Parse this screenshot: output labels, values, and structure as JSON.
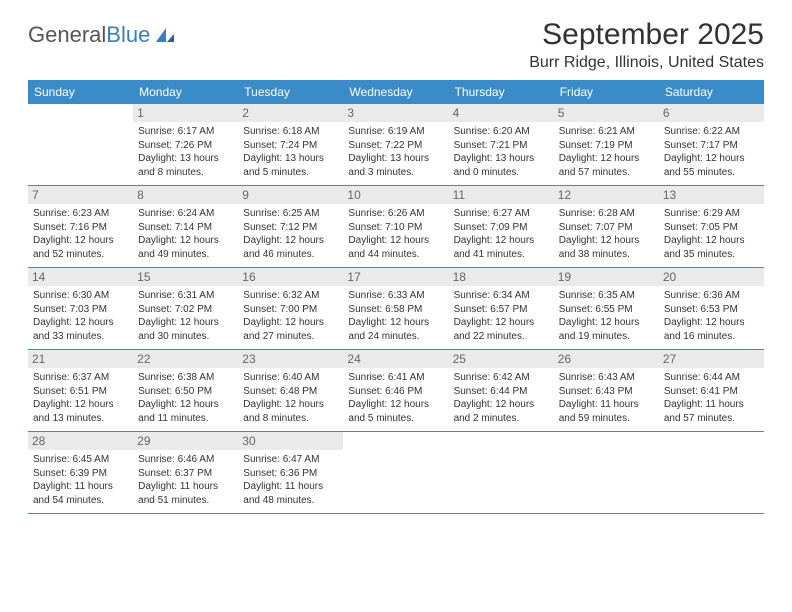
{
  "logo": {
    "text1": "General",
    "text2": "Blue"
  },
  "title": "September 2025",
  "location": "Burr Ridge, Illinois, United States",
  "weekdays": [
    "Sunday",
    "Monday",
    "Tuesday",
    "Wednesday",
    "Thursday",
    "Friday",
    "Saturday"
  ],
  "colors": {
    "header_bg": "#3a8cc9",
    "header_text": "#ffffff",
    "accent": "#3a7ebf",
    "daynum_bg": "#eaeaea",
    "border": "#3a8cc9"
  },
  "weeks": [
    [
      {
        "n": "",
        "sr": "",
        "ss": "",
        "dl": ""
      },
      {
        "n": "1",
        "sr": "Sunrise: 6:17 AM",
        "ss": "Sunset: 7:26 PM",
        "dl": "Daylight: 13 hours and 8 minutes."
      },
      {
        "n": "2",
        "sr": "Sunrise: 6:18 AM",
        "ss": "Sunset: 7:24 PM",
        "dl": "Daylight: 13 hours and 5 minutes."
      },
      {
        "n": "3",
        "sr": "Sunrise: 6:19 AM",
        "ss": "Sunset: 7:22 PM",
        "dl": "Daylight: 13 hours and 3 minutes."
      },
      {
        "n": "4",
        "sr": "Sunrise: 6:20 AM",
        "ss": "Sunset: 7:21 PM",
        "dl": "Daylight: 13 hours and 0 minutes."
      },
      {
        "n": "5",
        "sr": "Sunrise: 6:21 AM",
        "ss": "Sunset: 7:19 PM",
        "dl": "Daylight: 12 hours and 57 minutes."
      },
      {
        "n": "6",
        "sr": "Sunrise: 6:22 AM",
        "ss": "Sunset: 7:17 PM",
        "dl": "Daylight: 12 hours and 55 minutes."
      }
    ],
    [
      {
        "n": "7",
        "sr": "Sunrise: 6:23 AM",
        "ss": "Sunset: 7:16 PM",
        "dl": "Daylight: 12 hours and 52 minutes."
      },
      {
        "n": "8",
        "sr": "Sunrise: 6:24 AM",
        "ss": "Sunset: 7:14 PM",
        "dl": "Daylight: 12 hours and 49 minutes."
      },
      {
        "n": "9",
        "sr": "Sunrise: 6:25 AM",
        "ss": "Sunset: 7:12 PM",
        "dl": "Daylight: 12 hours and 46 minutes."
      },
      {
        "n": "10",
        "sr": "Sunrise: 6:26 AM",
        "ss": "Sunset: 7:10 PM",
        "dl": "Daylight: 12 hours and 44 minutes."
      },
      {
        "n": "11",
        "sr": "Sunrise: 6:27 AM",
        "ss": "Sunset: 7:09 PM",
        "dl": "Daylight: 12 hours and 41 minutes."
      },
      {
        "n": "12",
        "sr": "Sunrise: 6:28 AM",
        "ss": "Sunset: 7:07 PM",
        "dl": "Daylight: 12 hours and 38 minutes."
      },
      {
        "n": "13",
        "sr": "Sunrise: 6:29 AM",
        "ss": "Sunset: 7:05 PM",
        "dl": "Daylight: 12 hours and 35 minutes."
      }
    ],
    [
      {
        "n": "14",
        "sr": "Sunrise: 6:30 AM",
        "ss": "Sunset: 7:03 PM",
        "dl": "Daylight: 12 hours and 33 minutes."
      },
      {
        "n": "15",
        "sr": "Sunrise: 6:31 AM",
        "ss": "Sunset: 7:02 PM",
        "dl": "Daylight: 12 hours and 30 minutes."
      },
      {
        "n": "16",
        "sr": "Sunrise: 6:32 AM",
        "ss": "Sunset: 7:00 PM",
        "dl": "Daylight: 12 hours and 27 minutes."
      },
      {
        "n": "17",
        "sr": "Sunrise: 6:33 AM",
        "ss": "Sunset: 6:58 PM",
        "dl": "Daylight: 12 hours and 24 minutes."
      },
      {
        "n": "18",
        "sr": "Sunrise: 6:34 AM",
        "ss": "Sunset: 6:57 PM",
        "dl": "Daylight: 12 hours and 22 minutes."
      },
      {
        "n": "19",
        "sr": "Sunrise: 6:35 AM",
        "ss": "Sunset: 6:55 PM",
        "dl": "Daylight: 12 hours and 19 minutes."
      },
      {
        "n": "20",
        "sr": "Sunrise: 6:36 AM",
        "ss": "Sunset: 6:53 PM",
        "dl": "Daylight: 12 hours and 16 minutes."
      }
    ],
    [
      {
        "n": "21",
        "sr": "Sunrise: 6:37 AM",
        "ss": "Sunset: 6:51 PM",
        "dl": "Daylight: 12 hours and 13 minutes."
      },
      {
        "n": "22",
        "sr": "Sunrise: 6:38 AM",
        "ss": "Sunset: 6:50 PM",
        "dl": "Daylight: 12 hours and 11 minutes."
      },
      {
        "n": "23",
        "sr": "Sunrise: 6:40 AM",
        "ss": "Sunset: 6:48 PM",
        "dl": "Daylight: 12 hours and 8 minutes."
      },
      {
        "n": "24",
        "sr": "Sunrise: 6:41 AM",
        "ss": "Sunset: 6:46 PM",
        "dl": "Daylight: 12 hours and 5 minutes."
      },
      {
        "n": "25",
        "sr": "Sunrise: 6:42 AM",
        "ss": "Sunset: 6:44 PM",
        "dl": "Daylight: 12 hours and 2 minutes."
      },
      {
        "n": "26",
        "sr": "Sunrise: 6:43 AM",
        "ss": "Sunset: 6:43 PM",
        "dl": "Daylight: 11 hours and 59 minutes."
      },
      {
        "n": "27",
        "sr": "Sunrise: 6:44 AM",
        "ss": "Sunset: 6:41 PM",
        "dl": "Daylight: 11 hours and 57 minutes."
      }
    ],
    [
      {
        "n": "28",
        "sr": "Sunrise: 6:45 AM",
        "ss": "Sunset: 6:39 PM",
        "dl": "Daylight: 11 hours and 54 minutes."
      },
      {
        "n": "29",
        "sr": "Sunrise: 6:46 AM",
        "ss": "Sunset: 6:37 PM",
        "dl": "Daylight: 11 hours and 51 minutes."
      },
      {
        "n": "30",
        "sr": "Sunrise: 6:47 AM",
        "ss": "Sunset: 6:36 PM",
        "dl": "Daylight: 11 hours and 48 minutes."
      },
      {
        "n": "",
        "sr": "",
        "ss": "",
        "dl": ""
      },
      {
        "n": "",
        "sr": "",
        "ss": "",
        "dl": ""
      },
      {
        "n": "",
        "sr": "",
        "ss": "",
        "dl": ""
      },
      {
        "n": "",
        "sr": "",
        "ss": "",
        "dl": ""
      }
    ]
  ]
}
